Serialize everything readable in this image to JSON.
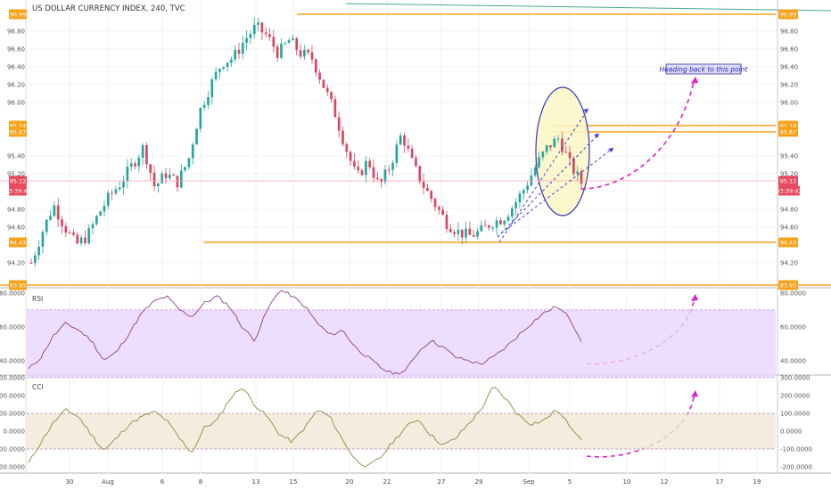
{
  "title": "US DOLLAR CURRENCY INDEX, 240, TVC",
  "annotation": "Heading back to this point",
  "colors": {
    "up": "#26a69a",
    "down": "#d9455f",
    "level": "#f7a21b",
    "price_tag": "#e84a5f",
    "rsi_line": "#8e3f8e",
    "rsi_band": "#e9d5ff",
    "cci_line": "#9c8446",
    "cci_band": "#f1e7d6",
    "ellipse_stroke": "#3a33b8",
    "ellipse_fill": "#fbf7c6",
    "channel": "#3b3bd6",
    "arrow": "#e020c8"
  },
  "chart_data": [
    {
      "type": "candlestick",
      "title": "US DOLLAR CURRENCY INDEX, 240, TVC",
      "x_ticks": [
        "30",
        "Aug",
        "6",
        "8",
        "13",
        "15",
        "20",
        "22",
        "27",
        "29",
        "Sep",
        "5",
        "10",
        "12",
        "17",
        "19"
      ],
      "y_ticks": [
        "96.99",
        "96.80",
        "96.60",
        "96.40",
        "96.20",
        "96.00",
        "95.74",
        "95.67",
        "95.40",
        "95.20",
        "95.12",
        "94.80",
        "94.60",
        "94.43",
        "94.20",
        "93.95"
      ],
      "ylim": [
        93.95,
        96.99
      ],
      "levels": [
        96.99,
        95.74,
        95.67,
        94.43,
        93.95
      ],
      "last_price": 95.12,
      "countdown": "03:39:42",
      "close_path": [
        94.2,
        94.55,
        94.85,
        94.6,
        94.4,
        94.5,
        94.75,
        94.95,
        95.1,
        95.3,
        95.5,
        95.05,
        95.2,
        95.1,
        95.35,
        95.9,
        96.2,
        96.45,
        96.5,
        96.7,
        96.85,
        96.75,
        96.55,
        96.7,
        96.55,
        96.5,
        96.2,
        95.9,
        95.5,
        95.15,
        95.35,
        95.05,
        95.3,
        95.65,
        95.3,
        95.05,
        94.85,
        94.65,
        94.55,
        94.5,
        94.55,
        94.65,
        94.7,
        94.85,
        95.05,
        95.3,
        95.5,
        95.6,
        95.3,
        95.1
      ]
    },
    {
      "type": "line",
      "title": "RSI",
      "y_ticks": [
        "80.0000",
        "60.0000",
        "40.0000"
      ],
      "ylim": [
        32,
        82
      ],
      "band": [
        30,
        70
      ],
      "values": [
        35,
        42,
        55,
        62,
        58,
        52,
        40,
        45,
        56,
        68,
        75,
        78,
        70,
        66,
        74,
        78,
        72,
        60,
        52,
        70,
        82,
        78,
        72,
        62,
        55,
        58,
        48,
        42,
        36,
        32,
        34,
        45,
        52,
        48,
        42,
        40,
        38,
        42,
        48,
        55,
        62,
        68,
        72,
        66,
        52
      ]
    },
    {
      "type": "line",
      "title": "CCI",
      "y_ticks": [
        "300.0000",
        "200.0000",
        "100.0000",
        "0.0000",
        "-100.0000",
        "-200.0000"
      ],
      "ylim": [
        -230,
        300
      ],
      "band": [
        -100,
        100
      ],
      "values": [
        -180,
        -60,
        50,
        120,
        80,
        -20,
        -110,
        -40,
        40,
        80,
        110,
        60,
        -40,
        -120,
        20,
        60,
        180,
        250,
        150,
        80,
        -20,
        -60,
        20,
        120,
        80,
        -50,
        -160,
        -200,
        -150,
        -60,
        20,
        70,
        -20,
        -80,
        -40,
        40,
        120,
        250,
        180,
        90,
        40,
        60,
        120,
        40,
        -40
      ]
    }
  ]
}
